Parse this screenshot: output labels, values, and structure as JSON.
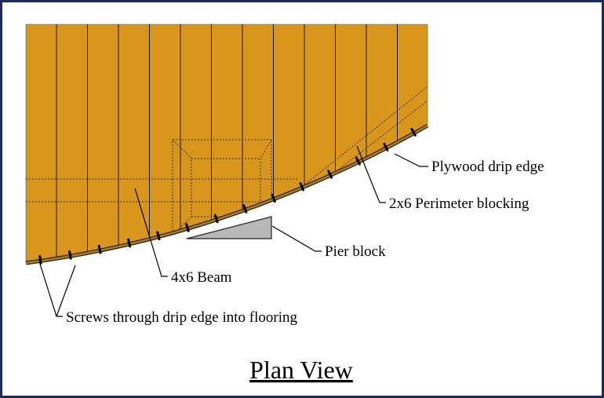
{
  "title": "Plan View",
  "labels": {
    "drip_edge": "Plywood drip edge",
    "perimeter_blocking": "2x6 Perimeter blocking",
    "pier_block": "Pier block",
    "beam": "4x6 Beam",
    "screws": "Screws through drip edge into flooring"
  },
  "colors": {
    "flooring": "#d9961d",
    "drip_edge": "#b07a22",
    "pier_block": "#b8b8b8",
    "border": "#1f2a5a"
  }
}
